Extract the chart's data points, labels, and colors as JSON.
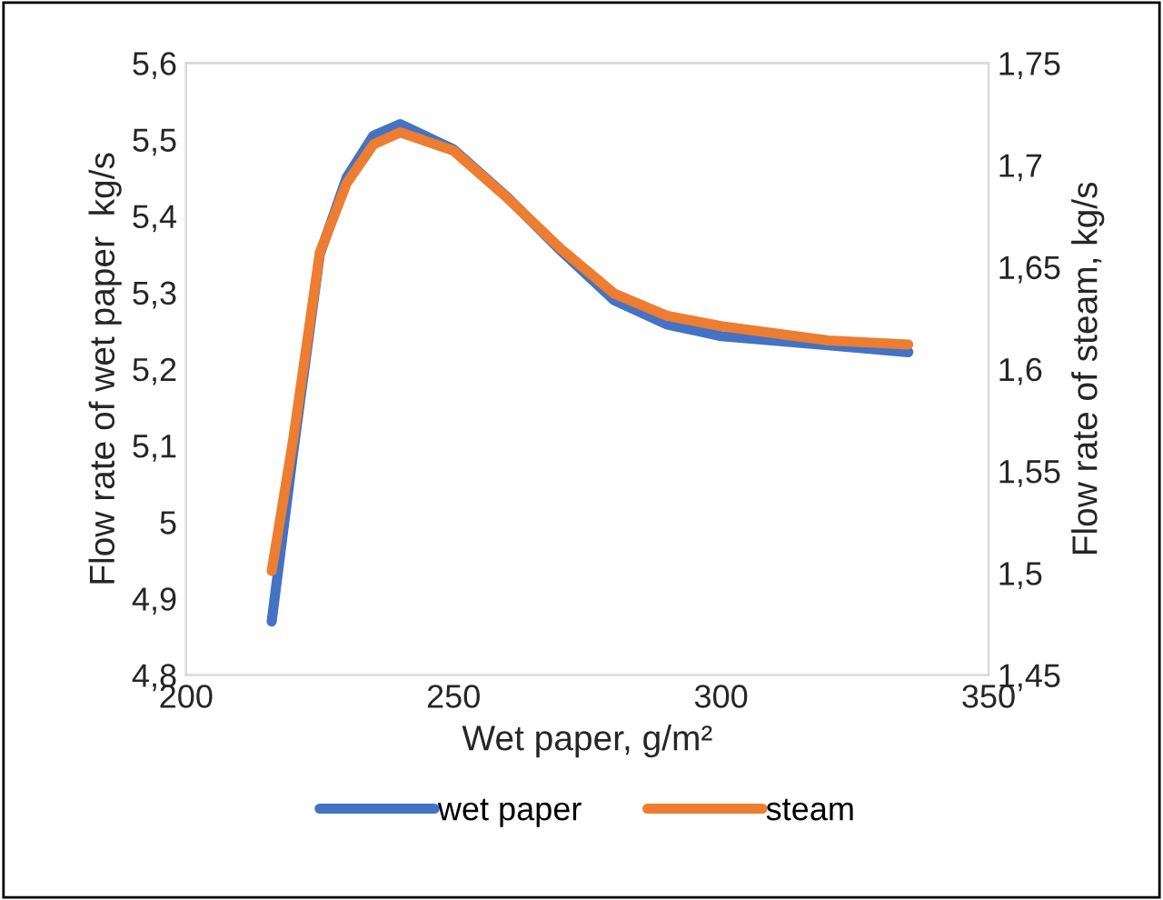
{
  "chart_data": {
    "type": "line",
    "xlabel": "Wet paper, g/m²",
    "ylabel": "Flow rate of wet paper  kg/s",
    "y2label": "Flow rate of steam, kg/s",
    "x": [
      216,
      220,
      225,
      230,
      235,
      240,
      250,
      260,
      270,
      280,
      290,
      300,
      320,
      335
    ],
    "series": [
      {
        "name": "wet paper",
        "color": "#4472c4",
        "values": [
          4.87,
          5.09,
          5.35,
          5.45,
          5.505,
          5.52,
          5.487,
          5.425,
          5.355,
          5.29,
          5.258,
          5.243,
          5.231,
          5.222
        ]
      },
      {
        "name": "steam",
        "color": "#ed7d31",
        "axis": "y2",
        "values": [
          1.501,
          1.565,
          1.657,
          1.691,
          1.71,
          1.716,
          1.707,
          1.684,
          1.659,
          1.637,
          1.626,
          1.621,
          1.614,
          1.612
        ]
      }
    ],
    "xlim": [
      200,
      350
    ],
    "xticks": [
      200,
      250,
      300,
      350
    ],
    "ylim": [
      4.8,
      5.6
    ],
    "yticks": [
      {
        "value": 4.8,
        "label": "4,8"
      },
      {
        "value": 4.9,
        "label": "4,9"
      },
      5,
      {
        "value": 5.1,
        "label": "5,1"
      },
      {
        "value": 5.2,
        "label": "5,2"
      },
      {
        "value": 5.3,
        "label": "5,3"
      },
      {
        "value": 5.4,
        "label": "5,4"
      },
      {
        "value": 5.5,
        "label": "5,5"
      },
      {
        "value": 5.6,
        "label": "5,6"
      }
    ],
    "y2lim": [
      1.45,
      1.75
    ],
    "y2ticks": [
      {
        "value": 1.45,
        "label": "1,45"
      },
      {
        "value": 1.5,
        "label": "1,5"
      },
      {
        "value": 1.55,
        "label": "1,55"
      },
      {
        "value": 1.6,
        "label": "1,6"
      },
      {
        "value": 1.65,
        "label": "1,65"
      },
      {
        "value": 1.7,
        "label": "1,7"
      },
      {
        "value": 1.75,
        "label": "1,75"
      }
    ],
    "grid": false,
    "legend": "bottom",
    "line_style": "solid",
    "marker": "none"
  }
}
